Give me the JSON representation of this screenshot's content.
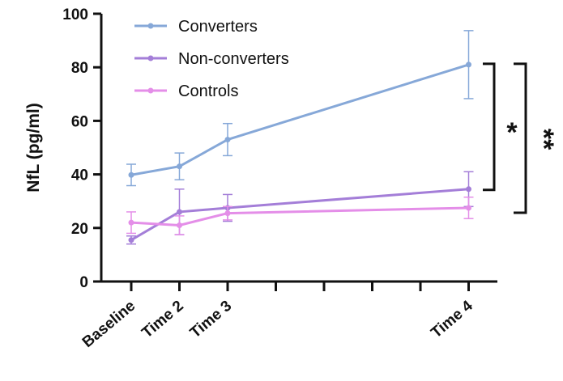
{
  "chart_data": {
    "type": "line",
    "ylabel": "NfL (pg/ml)",
    "xlabel": "",
    "ylim": [
      0,
      100
    ],
    "yticks": [
      0,
      20,
      40,
      60,
      80,
      100
    ],
    "x_categories": [
      "Baseline",
      "Time 2",
      "Time 3",
      "Time 4"
    ],
    "x_positions": [
      0,
      1,
      2,
      7
    ],
    "x_minor_ticks": [
      3,
      4,
      5,
      6
    ],
    "x_max": 7.5,
    "series": [
      {
        "name": "Converters",
        "color": "#86a8d8",
        "values": [
          39.8,
          43,
          53,
          81
        ],
        "errors": [
          4,
          5,
          6,
          12.7
        ]
      },
      {
        "name": "Non-converters",
        "color": "#a47ed8",
        "values": [
          15.5,
          26,
          27.5,
          34.5
        ],
        "errors": [
          1.5,
          8.5,
          5,
          6.5
        ]
      },
      {
        "name": "Controls",
        "color": "#e48ee8",
        "values": [
          22,
          21,
          25.5,
          27.5
        ],
        "errors": [
          4,
          3.5,
          2.5,
          4
        ]
      }
    ],
    "legend_position": "top-left",
    "significance": [
      {
        "label": "*",
        "between": [
          "Converters",
          "Non-converters"
        ]
      },
      {
        "label": "**",
        "between": [
          "Converters",
          "Controls"
        ]
      }
    ]
  }
}
